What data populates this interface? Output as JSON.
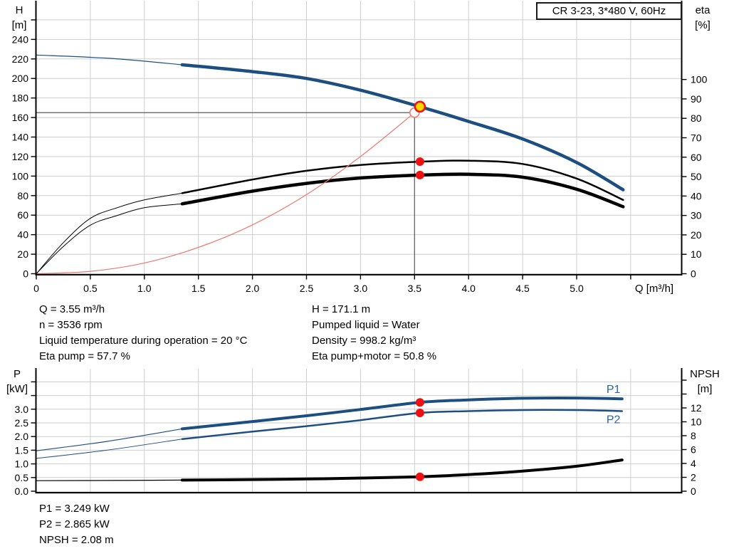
{
  "title_box": "CR 3-23, 3*480 V, 60Hz",
  "axis_titles": {
    "top_left": [
      "H",
      "[m]"
    ],
    "top_right": [
      "eta",
      "[%]"
    ],
    "bottom_left": [
      "P",
      "[kW]"
    ],
    "bottom_right": [
      "NPSH",
      "[m]"
    ],
    "x_unit": "Q [m³/h]"
  },
  "info_top": {
    "left": [
      "Q = 3.55 m³/h",
      "n = 3536 rpm",
      "Liquid temperature during operation = 20 °C",
      "Eta pump = 57.7 %"
    ],
    "right": [
      "H = 171.1 m",
      "Pumped liquid = Water",
      "Density = 998.2 kg/m³",
      "Eta pump+motor = 50.8 %"
    ]
  },
  "info_bottom": [
    "P1 = 3.249 kW",
    "P2 = 2.865 kW",
    "NPSH = 2.08 m"
  ],
  "colors": {
    "curve_blue": "#1d4e80",
    "label_blue": "#2a64a5",
    "curve_black": "#000000",
    "system_red": "#e97a74",
    "dot_red": "#ee1111",
    "marker_yellow": "#ffd700",
    "grid": "#cdcdcd",
    "crosshair": "#5a5a5a",
    "axis": "#000000"
  },
  "chart_data": [
    {
      "type": "line",
      "title": "CR 3-23, 3*480 V, 60Hz",
      "x": {
        "label": "Q [m³/h]",
        "min": 0,
        "max": 6,
        "grid_step": 0.5,
        "tick_labels": [
          "0",
          "0.5",
          "1.0",
          "1.5",
          "2.0",
          "2.5",
          "3.0",
          "3.5",
          "4.0",
          "4.5",
          "5.0"
        ],
        "unlabeled_ticks": [
          5.5
        ]
      },
      "y_left": {
        "label": "H [m]",
        "min": 0,
        "max": 275,
        "grid_step": 20,
        "tick_labels": [
          "0",
          "20",
          "40",
          "60",
          "80",
          "100",
          "120",
          "140",
          "160",
          "180",
          "200",
          "220",
          "240"
        ],
        "unlabeled_ticks": [
          260
        ]
      },
      "y_right": {
        "label": "eta [%]",
        "min": 0,
        "max": 101,
        "tick_labels": [
          "0",
          "10",
          "20",
          "30",
          "40",
          "50",
          "60",
          "70",
          "80",
          "90",
          "100"
        ],
        "unlabeled_ticks": []
      },
      "series": [
        {
          "name": "qh-out-of-range",
          "axis": "left",
          "color_key": "curve_blue",
          "points": [
            [
              0,
              224
            ],
            [
              0.7,
              220.5
            ],
            [
              1.35,
              214
            ]
          ]
        },
        {
          "name": "qh-curve",
          "axis": "left",
          "color_key": "curve_blue",
          "points": [
            [
              1.35,
              214
            ],
            [
              2.0,
              207
            ],
            [
              2.5,
              200
            ],
            [
              3.0,
              188
            ],
            [
              3.55,
              171.1
            ],
            [
              4.0,
              156
            ],
            [
              4.5,
              138
            ],
            [
              5.0,
              114
            ],
            [
              5.43,
              86
            ]
          ]
        },
        {
          "name": "eta-pump-out-of-range",
          "axis": "right",
          "color_key": "curve_black",
          "points": [
            [
              0,
              0
            ],
            [
              0.25,
              16
            ],
            [
              0.5,
              28.5
            ],
            [
              0.75,
              34
            ],
            [
              1.0,
              38
            ],
            [
              1.35,
              41.5
            ]
          ]
        },
        {
          "name": "eta-pump-curve",
          "axis": "right",
          "color_key": "curve_black",
          "points": [
            [
              1.35,
              41.5
            ],
            [
              2.0,
              48.5
            ],
            [
              2.5,
              53
            ],
            [
              3.0,
              56
            ],
            [
              3.55,
              57.7
            ],
            [
              4.0,
              58.2
            ],
            [
              4.5,
              56.5
            ],
            [
              5.0,
              49
            ],
            [
              5.43,
              38
            ]
          ]
        },
        {
          "name": "eta-pump-motor-out-of-range",
          "axis": "right",
          "color_key": "curve_black",
          "points": [
            [
              0,
              0
            ],
            [
              0.25,
              14
            ],
            [
              0.5,
              25
            ],
            [
              0.75,
              30
            ],
            [
              1.0,
              34
            ],
            [
              1.35,
              36
            ]
          ]
        },
        {
          "name": "eta-pump-motor-curve",
          "axis": "right",
          "color_key": "curve_black",
          "points": [
            [
              1.35,
              36
            ],
            [
              2.0,
              42.5
            ],
            [
              2.5,
              46.5
            ],
            [
              3.0,
              49.3
            ],
            [
              3.55,
              50.8
            ],
            [
              4.0,
              51.2
            ],
            [
              4.5,
              49.7
            ],
            [
              5.0,
              43.5
            ],
            [
              5.43,
              34.5
            ]
          ]
        },
        {
          "name": "system-curve",
          "axis": "left",
          "color_key": "system_red",
          "points": [
            [
              0,
              0
            ],
            [
              0.5,
              2.5
            ],
            [
              1.0,
              11
            ],
            [
              1.5,
              27
            ],
            [
              2.0,
              50
            ],
            [
              2.5,
              81
            ],
            [
              3.0,
              120
            ],
            [
              3.5,
              165
            ]
          ]
        }
      ],
      "crosshair": {
        "q": 3.5,
        "h": 165
      },
      "markers": [
        {
          "name": "duty-point-actual",
          "shape": "circle-yellow",
          "q": 3.55,
          "value": 171.1,
          "axis": "left"
        },
        {
          "name": "duty-point-requested",
          "shape": "circle-open",
          "q": 3.5,
          "value": 165,
          "axis": "left"
        },
        {
          "name": "eta-pump-point",
          "shape": "dot-red",
          "q": 3.55,
          "value": 57.7,
          "axis": "right"
        },
        {
          "name": "eta-pump-motor-point",
          "shape": "dot-red",
          "q": 3.55,
          "value": 50.8,
          "axis": "right"
        }
      ]
    },
    {
      "type": "line",
      "title": "Power and NPSH curves",
      "x": {
        "label": "",
        "min": 0,
        "max": 6,
        "grid_step": 0.5,
        "tick_labels": [],
        "unlabeled_ticks": []
      },
      "y_left": {
        "label": "P [kW]",
        "min": 0,
        "max": 4.5,
        "grid_step": 0.5,
        "tick_labels": [
          "0.0",
          "0.5",
          "1.0",
          "1.5",
          "2.0",
          "2.5",
          "3.0"
        ],
        "unlabeled_ticks": [
          3.5,
          4.0
        ]
      },
      "y_right": {
        "label": "NPSH [m]",
        "min": 0,
        "max": 17.6,
        "tick_labels": [
          "0",
          "2",
          "4",
          "6",
          "8",
          "10",
          "12"
        ],
        "unlabeled_ticks": [
          14,
          16
        ]
      },
      "series": [
        {
          "name": "p1-out-of-range",
          "axis": "left",
          "color_key": "curve_blue",
          "points": [
            [
              0,
              1.48
            ],
            [
              0.65,
              1.82
            ],
            [
              1.35,
              2.28
            ]
          ]
        },
        {
          "name": "p1-curve",
          "axis": "left",
          "color_key": "curve_blue",
          "points": [
            [
              1.35,
              2.28
            ],
            [
              2.0,
              2.55
            ],
            [
              2.5,
              2.76
            ],
            [
              3.0,
              2.99
            ],
            [
              3.55,
              3.249
            ],
            [
              4.0,
              3.34
            ],
            [
              4.5,
              3.4
            ],
            [
              5.0,
              3.41
            ],
            [
              5.42,
              3.38
            ]
          ]
        },
        {
          "name": "p2-out-of-range",
          "axis": "left",
          "color_key": "curve_blue",
          "points": [
            [
              0,
              1.2
            ],
            [
              0.65,
              1.5
            ],
            [
              1.35,
              1.91
            ]
          ]
        },
        {
          "name": "p2-curve",
          "axis": "left",
          "color_key": "curve_blue",
          "points": [
            [
              1.35,
              1.91
            ],
            [
              2.0,
              2.18
            ],
            [
              2.5,
              2.38
            ],
            [
              3.0,
              2.6
            ],
            [
              3.55,
              2.865
            ],
            [
              4.0,
              2.93
            ],
            [
              4.5,
              2.97
            ],
            [
              5.0,
              2.97
            ],
            [
              5.42,
              2.93
            ]
          ]
        },
        {
          "name": "npsh-out-of-range",
          "axis": "right",
          "color_key": "curve_black",
          "points": [
            [
              0,
              1.52
            ],
            [
              0.7,
              1.55
            ],
            [
              1.35,
              1.6
            ]
          ]
        },
        {
          "name": "npsh-curve",
          "axis": "right",
          "color_key": "curve_black",
          "points": [
            [
              1.35,
              1.6
            ],
            [
              2.0,
              1.68
            ],
            [
              2.5,
              1.76
            ],
            [
              3.0,
              1.9
            ],
            [
              3.55,
              2.08
            ],
            [
              4.0,
              2.4
            ],
            [
              4.5,
              2.9
            ],
            [
              5.0,
              3.6
            ],
            [
              5.42,
              4.5
            ]
          ]
        }
      ],
      "curve_labels": [
        {
          "text": "P1",
          "q": 5.34,
          "value": 3.72,
          "axis": "left"
        },
        {
          "text": "P2",
          "q": 5.34,
          "value": 2.62,
          "axis": "left"
        }
      ],
      "markers": [
        {
          "name": "p1-point",
          "shape": "dot-red",
          "q": 3.55,
          "value": 3.249,
          "axis": "left"
        },
        {
          "name": "p2-point",
          "shape": "dot-red",
          "q": 3.55,
          "value": 2.865,
          "axis": "left"
        },
        {
          "name": "npsh-point",
          "shape": "dot-red",
          "q": 3.55,
          "value": 2.08,
          "axis": "right"
        }
      ]
    }
  ]
}
